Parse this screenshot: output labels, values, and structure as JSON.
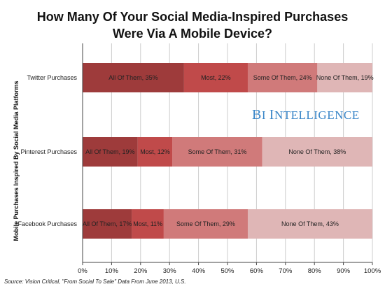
{
  "title": {
    "line1": "How Many Of Your Social Media-Inspired Purchases",
    "line2": "Were Via A Mobile Device?"
  },
  "watermark": "BI Intelligence",
  "source": "Source: Vision Critical, \"From Social To Sale\" Data From June 2013, U.S.",
  "colors": {
    "all": "#9e3b3b",
    "most": "#c04a4a",
    "some": "#d07a7a",
    "none": "#dfb6b6",
    "grid": "#cccccc",
    "axis": "#444444",
    "watermark": "#3a86c8"
  },
  "chart_data": {
    "type": "bar",
    "orientation": "horizontal",
    "stacked": true,
    "ylabel": "Mobile Purchases Inspired By Social Media Platforms",
    "xlim": [
      0,
      100
    ],
    "x_ticks": [
      "0%",
      "10%",
      "20%",
      "30%",
      "40%",
      "50%",
      "60%",
      "70%",
      "80%",
      "90%",
      "100%"
    ],
    "grid": "vertical",
    "categories": [
      "Twitter Purchases",
      "Pinterest Purchases",
      "Facebook Purchases"
    ],
    "series": [
      {
        "name": "All Of Them",
        "values": [
          35,
          19,
          17
        ],
        "labels": [
          "All Of Them, 35%",
          "All Of Them, 19%",
          "All Of Them, 17%"
        ]
      },
      {
        "name": "Most",
        "values": [
          22,
          12,
          11
        ],
        "labels": [
          "Most, 22%",
          "Most, 12%",
          "Most, 11%"
        ]
      },
      {
        "name": "Some Of Them",
        "values": [
          24,
          31,
          29
        ],
        "labels": [
          "Some Of Them, 24%",
          "Some Of Them, 31%",
          "Some Of Them, 29%"
        ]
      },
      {
        "name": "None Of Them",
        "values": [
          19,
          38,
          43
        ],
        "labels": [
          "None Of Them, 19%",
          "None Of Them, 38%",
          "None Of Them, 43%"
        ]
      }
    ]
  }
}
